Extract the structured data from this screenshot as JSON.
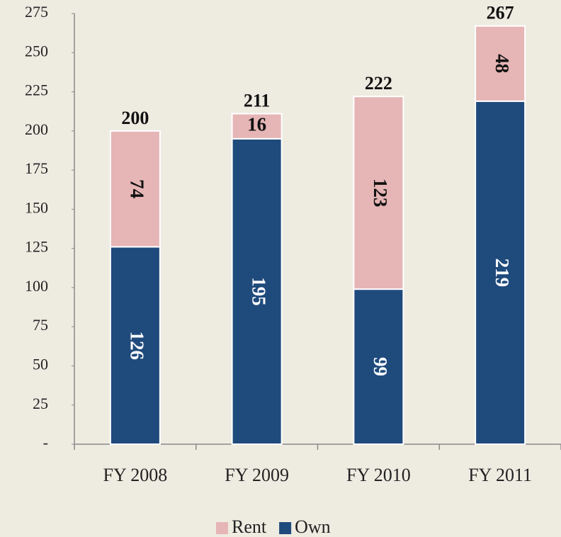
{
  "chart_data": {
    "type": "stacked-bar",
    "categories": [
      "FY 2008",
      "FY 2009",
      "FY 2010",
      "FY 2011"
    ],
    "series": [
      {
        "name": "Rent",
        "color": "#e6b5b5",
        "values": [
          74,
          16,
          123,
          48
        ]
      },
      {
        "name": "Own",
        "color": "#1f4a7c",
        "values": [
          126,
          195,
          99,
          219
        ]
      }
    ],
    "totals": [
      200,
      211,
      222,
      267
    ],
    "ylim": [
      0,
      275
    ],
    "yticks": [
      {
        "value": 0,
        "label": "-"
      },
      25,
      50,
      75,
      100,
      125,
      150,
      175,
      200,
      225,
      250,
      275
    ],
    "grid": false,
    "legend": "bottom"
  }
}
